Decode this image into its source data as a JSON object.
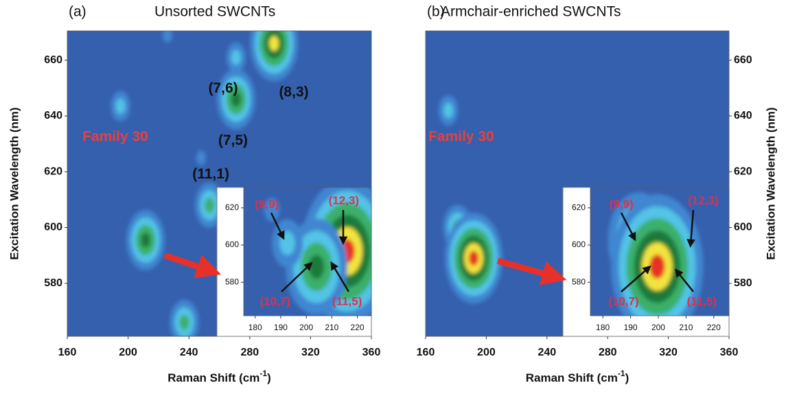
{
  "chart_data": [
    {
      "type": "contour",
      "label": "(a)",
      "title": "Unsorted SWCNTs",
      "xlabel": "Raman Shift (cm",
      "xlabel_sup": "-1",
      "xlabel_end": ")",
      "ylabel": "Excitation Wavelength (nm)",
      "ylabel_side": "left",
      "xlim": [
        160,
        360
      ],
      "xticks": [
        160,
        200,
        240,
        280,
        320,
        360
      ],
      "ylim": [
        561,
        670.5
      ],
      "yticks": [
        580,
        600,
        620,
        640,
        660
      ],
      "colormap": [
        "#3560ae",
        "#3f86d0",
        "#52c3e6",
        "#3bb06a",
        "#1e7a3a",
        "#f2e43c",
        "#e53222"
      ],
      "peaks": {
        "x": [
          296,
          271,
          271,
          195,
          253.5,
          211.5,
          237,
          226,
          248
        ],
        "y": [
          666,
          646,
          661,
          643.5,
          608,
          595.5,
          566,
          669,
          625
        ],
        "intensity": [
          5,
          4,
          2,
          2,
          3,
          4,
          3,
          1,
          1
        ]
      },
      "annotations": [
        {
          "text": "(7,6)",
          "x": 262.5,
          "y": 649.7,
          "color": "#111111"
        },
        {
          "text": "(8,3)",
          "x": 309,
          "y": 648.4,
          "color": "#111111"
        },
        {
          "text": "(7,5)",
          "x": 269,
          "y": 631,
          "color": "#111111"
        },
        {
          "text": "(11,1)",
          "x": 254.4,
          "y": 619,
          "color": "#111111"
        },
        {
          "text": "Family 30",
          "x": 191.6,
          "y": 632.4,
          "color": "#e8403c"
        }
      ]
    },
    {
      "type": "contour",
      "xlim": [
        175.5,
        225.5
      ],
      "xticks": [
        180,
        190,
        200,
        210,
        220
      ],
      "ylim": [
        562,
        631
      ],
      "yticks": [
        580,
        600,
        620
      ],
      "colormap": [
        "#3560ae",
        "#3f86d0",
        "#52c3e6",
        "#3bb06a",
        "#1e7a3a",
        "#f2e43c",
        "#e53222"
      ],
      "peaks": {
        "x": [
          216,
          204,
          192.6,
          186.5
        ],
        "y": [
          596.7,
          588.3,
          601,
          619
        ],
        "intensity": [
          6,
          4,
          2,
          1
        ]
      },
      "annotations": [
        {
          "text": "(9,9)",
          "x": 184.6,
          "y": 621.5,
          "color": "#e0304a"
        },
        {
          "text": "(12,3)",
          "x": 214.7,
          "y": 623.7,
          "color": "#e0304a"
        },
        {
          "text": "(10,7)",
          "x": 187.8,
          "y": 569.4,
          "color": "#e0304a"
        },
        {
          "text": "(11,5)",
          "x": 216,
          "y": 569.4,
          "color": "#e0304a"
        }
      ]
    },
    {
      "type": "contour",
      "label": "(b)",
      "title": "Armchair-enriched SWCNTs",
      "xlabel": "Raman Shift (cm",
      "xlabel_sup": "-1",
      "xlabel_end": ")",
      "ylabel": "Excitation Wavelength (nm)",
      "ylabel_side": "right",
      "xlim": [
        160,
        360
      ],
      "xticks": [
        160,
        200,
        240,
        280,
        320,
        360
      ],
      "ylim": [
        561,
        670.5
      ],
      "yticks": [
        580,
        600,
        620,
        640,
        660
      ],
      "colormap": [
        "#3560ae",
        "#3f86d0",
        "#52c3e6",
        "#3bb06a",
        "#1e7a3a",
        "#f2e43c",
        "#e53222"
      ],
      "peaks": {
        "x": [
          175,
          181,
          191.7
        ],
        "y": [
          642,
          600,
          589
        ],
        "intensity": [
          2,
          3,
          6
        ]
      },
      "annotations": [
        {
          "text": "Family 30",
          "x": 183.5,
          "y": 632.4,
          "color": "#e8403c"
        }
      ]
    },
    {
      "type": "contour",
      "xlim": [
        175.5,
        225.5
      ],
      "xticks": [
        180,
        190,
        200,
        210,
        220
      ],
      "ylim": [
        562,
        631
      ],
      "yticks": [
        580,
        600,
        620
      ],
      "colormap": [
        "#3560ae",
        "#3f86d0",
        "#52c3e6",
        "#3bb06a",
        "#1e7a3a",
        "#f2e43c",
        "#e53222"
      ],
      "peaks": {
        "x": [
          192.9,
          209,
          199.6
        ],
        "y": [
          602.4,
          589.4,
          588.4
        ],
        "intensity": [
          4,
          2,
          6
        ]
      },
      "annotations": [
        {
          "text": "(9,9)",
          "x": 186.7,
          "y": 621.5,
          "color": "#e0304a"
        },
        {
          "text": "(12,3)",
          "x": 216.2,
          "y": 623.7,
          "color": "#e0304a"
        },
        {
          "text": "(10,7)",
          "x": 187.5,
          "y": 569.4,
          "color": "#e0304a"
        },
        {
          "text": "(11,5)",
          "x": 215.7,
          "y": 569.4,
          "color": "#e0304a"
        }
      ]
    }
  ]
}
